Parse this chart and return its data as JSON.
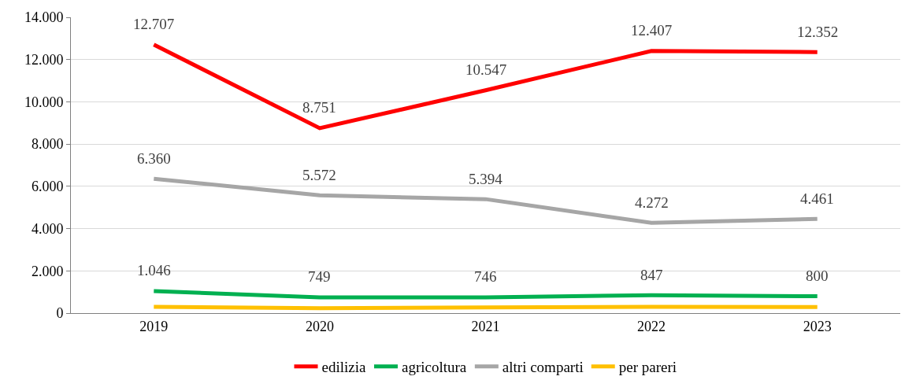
{
  "chart_data": {
    "type": "line",
    "categories": [
      "2019",
      "2020",
      "2021",
      "2022",
      "2023"
    ],
    "series": [
      {
        "name": "edilizia",
        "color": "#ff0000",
        "values": [
          12707,
          8751,
          10547,
          12407,
          12352
        ],
        "value_labels": [
          "12.707",
          "8.751",
          "10.547",
          "12.407",
          "12.352"
        ]
      },
      {
        "name": "agricoltura",
        "color": "#00b050",
        "values": [
          1046,
          749,
          746,
          847,
          800
        ],
        "value_labels": [
          "1.046",
          "749",
          "746",
          "847",
          "800"
        ]
      },
      {
        "name": "altri comparti",
        "color": "#a6a6a6",
        "values": [
          6360,
          5572,
          5394,
          4272,
          4461
        ],
        "value_labels": [
          "6.360",
          "5.572",
          "5.394",
          "4.272",
          "4.461"
        ]
      },
      {
        "name": "per pareri",
        "color": "#ffc000",
        "values": [
          300,
          230,
          270,
          300,
          290
        ]
      }
    ],
    "ylim": [
      0,
      14000
    ],
    "yticks": [
      0,
      {
        "value": 2000,
        "label": "2.000"
      },
      {
        "value": 4000,
        "label": "4.000"
      },
      {
        "value": 6000,
        "label": "6.000"
      },
      {
        "value": 8000,
        "label": "8.000"
      },
      {
        "value": 10000,
        "label": "10.000"
      },
      {
        "value": 12000,
        "label": "12.000"
      },
      {
        "value": 14000,
        "label": "14.000"
      }
    ],
    "grid": "y",
    "legend": "bottom",
    "marker": "none",
    "line_style": "solid"
  }
}
